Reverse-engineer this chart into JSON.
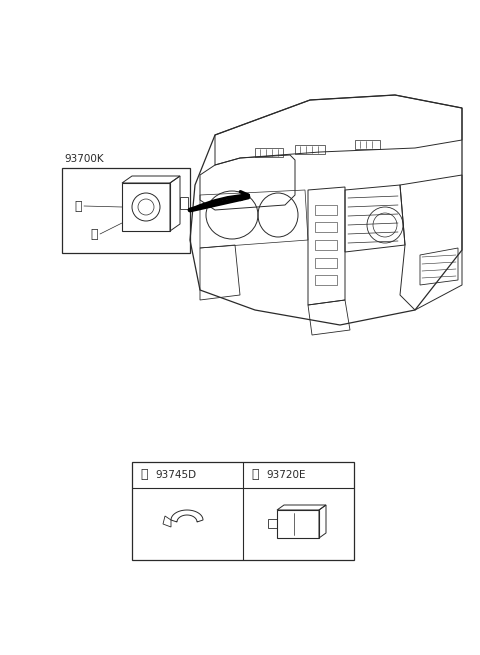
{
  "bg_color": "#ffffff",
  "lc": "#2a2a2a",
  "lc_thin": "#3a3a3a",
  "label_93700K": "93700K",
  "label_a_code": "93745D",
  "label_b_code": "93720E",
  "figw": 4.8,
  "figh": 6.55,
  "dpi": 100
}
